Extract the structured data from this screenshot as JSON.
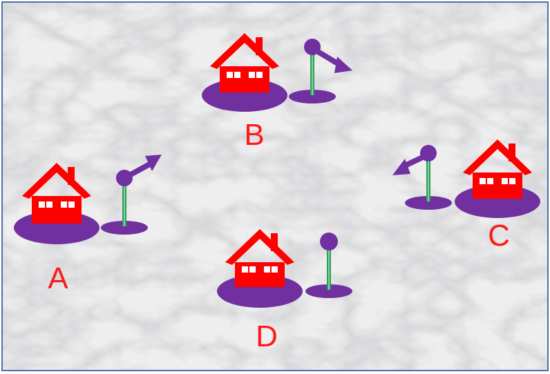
{
  "diagram": {
    "colors": {
      "house": "#ff0000",
      "base": "#7030a0",
      "pole": "#2e9e5b",
      "label": "#ff1a1a",
      "border": "#4f6ea8"
    },
    "stations": [
      {
        "id": "A",
        "label": "A",
        "signal": "arm-up-right",
        "icon": "house-with-signal-icon"
      },
      {
        "id": "B",
        "label": "B",
        "signal": "arm-down-right",
        "icon": "house-with-signal-icon"
      },
      {
        "id": "C",
        "label": "C",
        "signal": "arm-down-left",
        "icon": "house-with-signal-icon"
      },
      {
        "id": "D",
        "label": "D",
        "signal": "no-arm",
        "icon": "house-with-signal-icon"
      }
    ]
  }
}
